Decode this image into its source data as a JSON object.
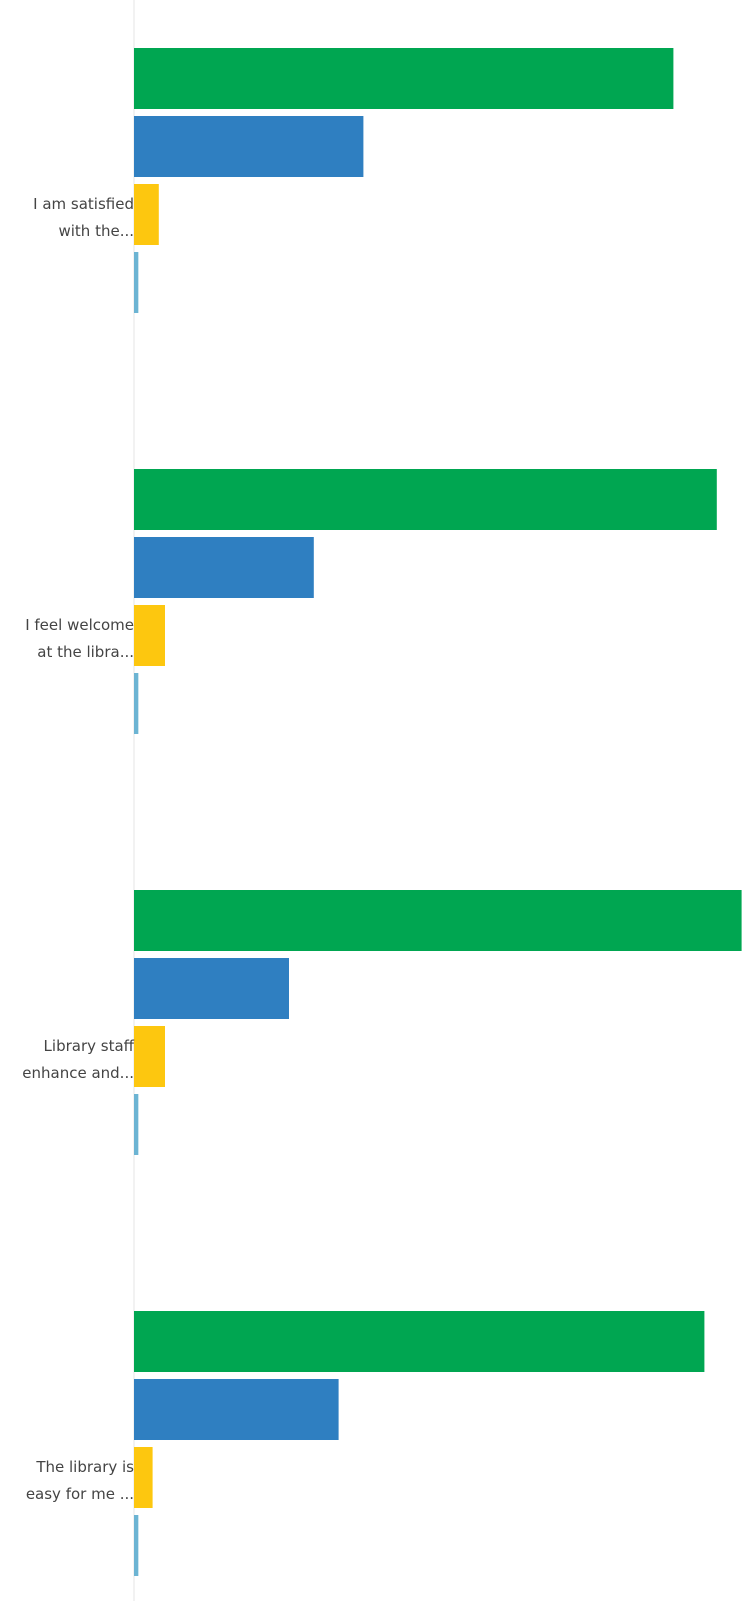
{
  "chart_data": {
    "type": "bar",
    "orientation": "horizontal",
    "categories": [
      "I am satisfied\nwith the...",
      "I feel welcome\nat the libra...",
      "Library staff\nenhance and...",
      "The library is\neasy for me ..."
    ],
    "series": [
      {
        "color": "#00a651",
        "values": [
          87,
          94,
          98,
          92
        ]
      },
      {
        "color": "#2f7fc1",
        "values": [
          37,
          29,
          25,
          33
        ]
      },
      {
        "color": "#fdc70f",
        "values": [
          4,
          5,
          5,
          3
        ]
      },
      {
        "color": "#6cb4d3",
        "values": [
          0.7,
          0.7,
          0.7,
          0.7
        ]
      }
    ],
    "xlim": [
      0,
      100
    ]
  }
}
